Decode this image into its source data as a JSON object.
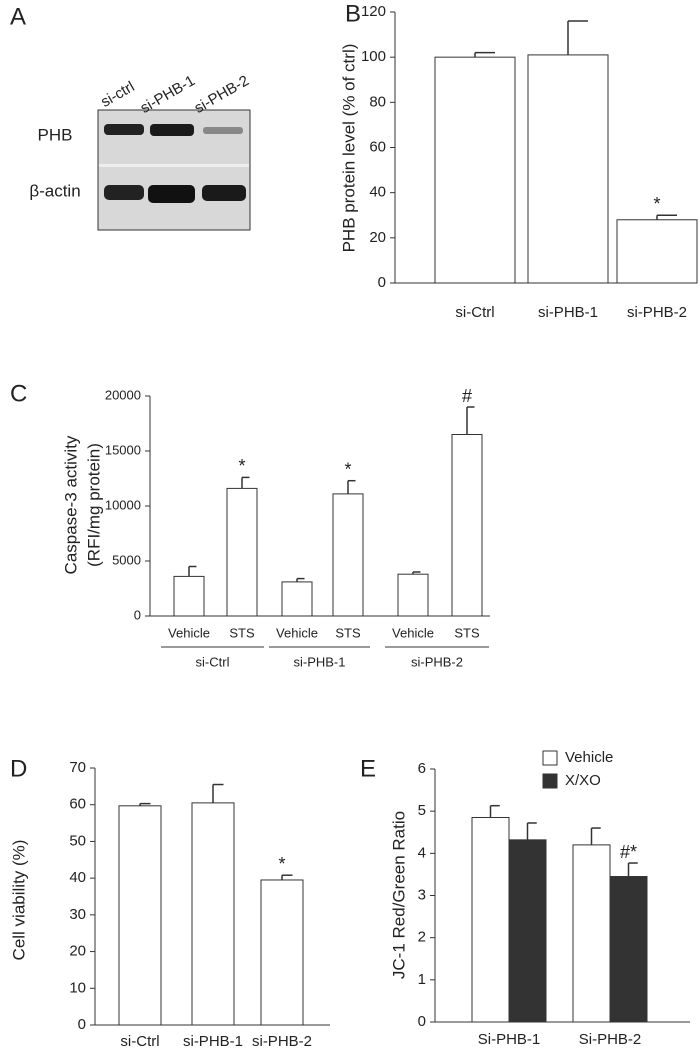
{
  "chart_data": [
    {
      "type": "blot",
      "label": "A",
      "categories": [
        "si-ctrl",
        "si-PHB-1",
        "si-PHB-2"
      ],
      "rows": [
        "PHB",
        "β-actin"
      ]
    },
    {
      "type": "bar",
      "label": "B",
      "ylabel": [
        "PHB protein level (% of ctrl)"
      ],
      "categories": [
        "si-Ctrl",
        "si-PHB-1",
        "si-PHB-2"
      ],
      "values": [
        100,
        101,
        28
      ],
      "errors": [
        2,
        15,
        2
      ],
      "annotations": [
        null,
        null,
        "*"
      ],
      "color": "#ffffff",
      "ylim": [
        0,
        120
      ],
      "yticks": [
        0,
        20,
        40,
        60,
        80,
        100,
        120
      ]
    },
    {
      "type": "bar",
      "label": "C",
      "ylabel": [
        "Caspase-3 activity",
        "(RFI/mg protein)"
      ],
      "categories": [
        "Vehicle",
        "STS",
        "Vehicle",
        "STS",
        "Vehicle",
        "STS"
      ],
      "group_labels": [
        "si-Ctrl",
        "si-PHB-1",
        "si-PHB-2"
      ],
      "values": [
        3600,
        11600,
        3100,
        11100,
        3800,
        16500
      ],
      "errors": [
        900,
        1000,
        300,
        1200,
        200,
        2500
      ],
      "annotations": [
        null,
        "*",
        null,
        "*",
        null,
        "#"
      ],
      "color": "#ffffff",
      "ylim": [
        0,
        20000
      ],
      "yticks": [
        0,
        5000,
        10000,
        15000,
        20000
      ]
    },
    {
      "type": "bar",
      "label": "D",
      "ylabel": [
        "Cell viability (%)"
      ],
      "categories": [
        "si-Ctrl",
        "si-PHB-1",
        "si-PHB-2"
      ],
      "values": [
        59.7,
        60.5,
        39.5
      ],
      "errors": [
        0.6,
        5,
        1.3
      ],
      "annotations": [
        null,
        null,
        "*"
      ],
      "color": "#ffffff",
      "ylim": [
        0,
        70
      ],
      "yticks": [
        0,
        10,
        20,
        30,
        40,
        50,
        60,
        70
      ]
    },
    {
      "type": "bar",
      "label": "E",
      "ylabel": [
        "JC-1 Red/Green Ratio"
      ],
      "categories": [
        "Si-PHB-1",
        "Si-PHB-2"
      ],
      "series": [
        {
          "name": "Vehicle",
          "color": "#ffffff",
          "values": [
            4.85,
            4.2
          ],
          "errors": [
            0.28,
            0.4
          ],
          "annotations": [
            null,
            null
          ]
        },
        {
          "name": "X/XO",
          "color": "#333333",
          "values": [
            4.32,
            3.45
          ],
          "errors": [
            0.4,
            0.32
          ],
          "annotations": [
            null,
            "#*"
          ]
        }
      ],
      "ylim": [
        0,
        6
      ],
      "yticks": [
        0,
        1,
        2,
        3,
        4,
        5,
        6
      ]
    }
  ]
}
